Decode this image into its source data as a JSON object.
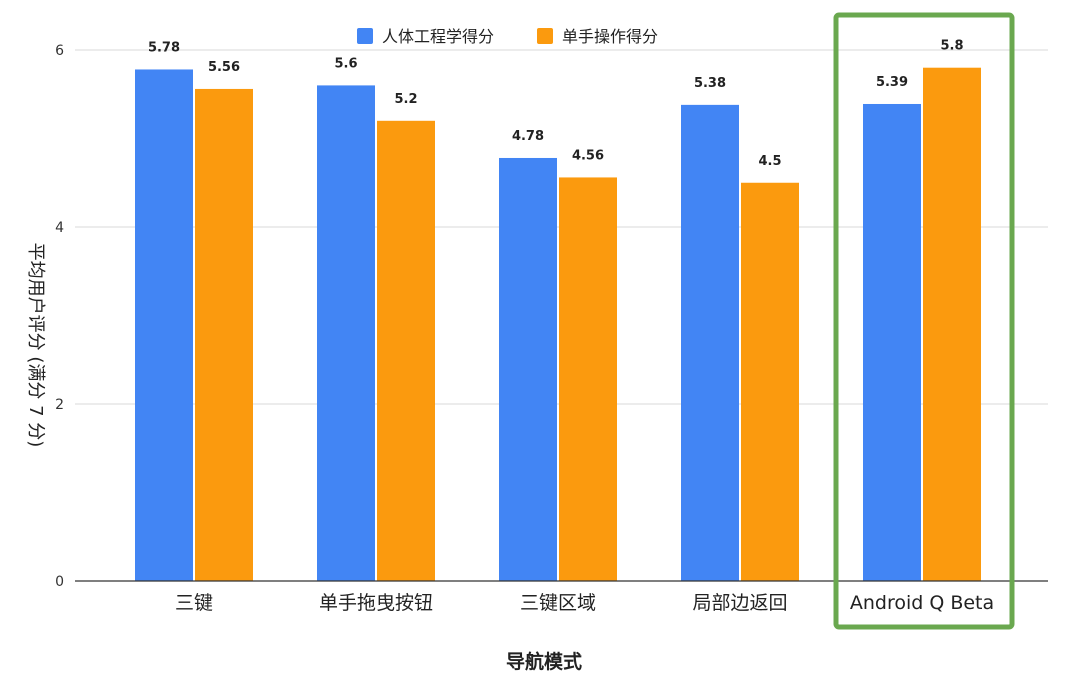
{
  "chart_data": {
    "type": "bar",
    "categories": [
      "三键",
      "单手拖曳按钮",
      "三键区域",
      "局部边返回",
      "Android Q Beta"
    ],
    "series": [
      {
        "name": "人体工程学得分",
        "values": [
          5.78,
          5.6,
          4.78,
          5.38,
          5.39
        ],
        "value_labels": [
          "5.78",
          "5.6",
          "4.78",
          "5.38",
          "5.39"
        ]
      },
      {
        "name": "单手操作得分",
        "values": [
          5.56,
          5.2,
          4.56,
          4.5,
          5.8
        ],
        "value_labels": [
          "5.56",
          "5.2",
          "4.56",
          "4.5",
          "5.8"
        ]
      }
    ],
    "xlabel": "导航模式",
    "ylabel": "平均用户评分 (满分 7 分)",
    "ylim": [
      0,
      6
    ],
    "yticks": [
      0,
      2,
      4,
      6
    ],
    "grid": true,
    "legend_position": "top-center",
    "highlighted_category": "Android Q Beta"
  },
  "colors": {
    "series": [
      "#4285f4",
      "#fb9a0e"
    ],
    "highlight_border": "#6aa84f",
    "grid": "#d9d9d9"
  }
}
